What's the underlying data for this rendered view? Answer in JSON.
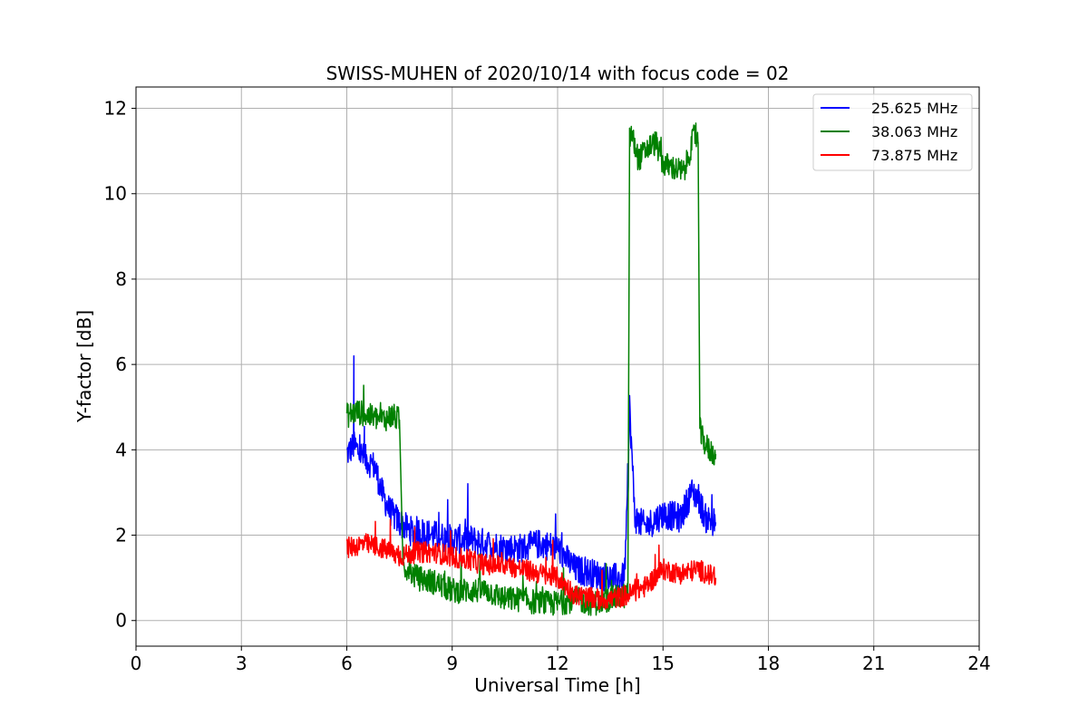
{
  "chart_data": {
    "type": "line",
    "title": "SWISS-MUHEN of 2020/10/14 with focus code = 02",
    "xlabel": "Universal Time [h]",
    "ylabel": "Y-factor [dB]",
    "xlim": [
      0,
      24
    ],
    "ylim": [
      -0.6,
      12.5
    ],
    "xticks": [
      0,
      3,
      6,
      9,
      12,
      15,
      18,
      21,
      24
    ],
    "yticks": [
      0,
      2,
      4,
      6,
      8,
      10,
      12
    ],
    "grid": true,
    "legend_position": "upper right",
    "series": [
      {
        "name": "25.625 MHz",
        "color": "#0000ff",
        "x": [
          6.0,
          6.2,
          6.5,
          6.8,
          7.0,
          7.2,
          7.5,
          7.8,
          8.0,
          8.5,
          9.0,
          9.5,
          10.0,
          10.5,
          11.0,
          11.5,
          12.0,
          12.5,
          13.0,
          13.5,
          13.9,
          14.0,
          14.05,
          14.2,
          14.5,
          15.0,
          15.5,
          15.8,
          16.0,
          16.2,
          16.5
        ],
        "y": [
          3.9,
          4.1,
          3.8,
          3.6,
          3.0,
          2.6,
          2.3,
          2.1,
          2.1,
          2.0,
          1.9,
          1.9,
          1.8,
          1.7,
          1.7,
          1.8,
          1.7,
          1.2,
          1.1,
          1.0,
          1.0,
          3.0,
          5.0,
          2.4,
          2.2,
          2.5,
          2.4,
          3.0,
          2.9,
          2.4,
          2.3
        ],
        "noise": 0.35,
        "spike_peak": 6.2,
        "spike_x": 6.2
      },
      {
        "name": "38.063 MHz",
        "color": "#008000",
        "x": [
          6.0,
          6.3,
          6.6,
          7.0,
          7.3,
          7.5,
          7.6,
          8.0,
          8.5,
          9.0,
          9.5,
          10.0,
          10.5,
          11.0,
          11.5,
          12.0,
          12.5,
          13.0,
          13.5,
          14.0,
          14.05,
          14.1,
          14.3,
          14.6,
          14.8,
          15.0,
          15.3,
          15.6,
          15.9,
          16.0,
          16.05,
          16.1,
          16.3,
          16.5
        ],
        "y": [
          4.8,
          4.9,
          4.8,
          4.7,
          4.8,
          4.7,
          1.3,
          1.0,
          0.9,
          0.7,
          0.7,
          0.7,
          0.5,
          0.5,
          0.4,
          0.4,
          0.5,
          0.4,
          0.5,
          0.6,
          11.3,
          11.4,
          10.8,
          11.1,
          11.2,
          10.7,
          10.6,
          10.5,
          11.4,
          11.2,
          4.5,
          4.3,
          4.0,
          3.9
        ],
        "noise": 0.3
      },
      {
        "name": "73.875 MHz",
        "color": "#ff0000",
        "x": [
          6.0,
          6.5,
          7.0,
          7.5,
          8.0,
          8.5,
          9.0,
          9.5,
          10.0,
          10.5,
          11.0,
          11.5,
          12.0,
          12.5,
          13.0,
          13.5,
          14.0,
          14.5,
          15.0,
          15.5,
          16.0,
          16.5
        ],
        "y": [
          1.7,
          1.8,
          1.7,
          1.5,
          1.6,
          1.6,
          1.5,
          1.4,
          1.3,
          1.3,
          1.2,
          1.1,
          1.0,
          0.6,
          0.5,
          0.5,
          0.6,
          0.8,
          1.2,
          1.1,
          1.2,
          1.0
        ],
        "noise": 0.25
      }
    ]
  }
}
